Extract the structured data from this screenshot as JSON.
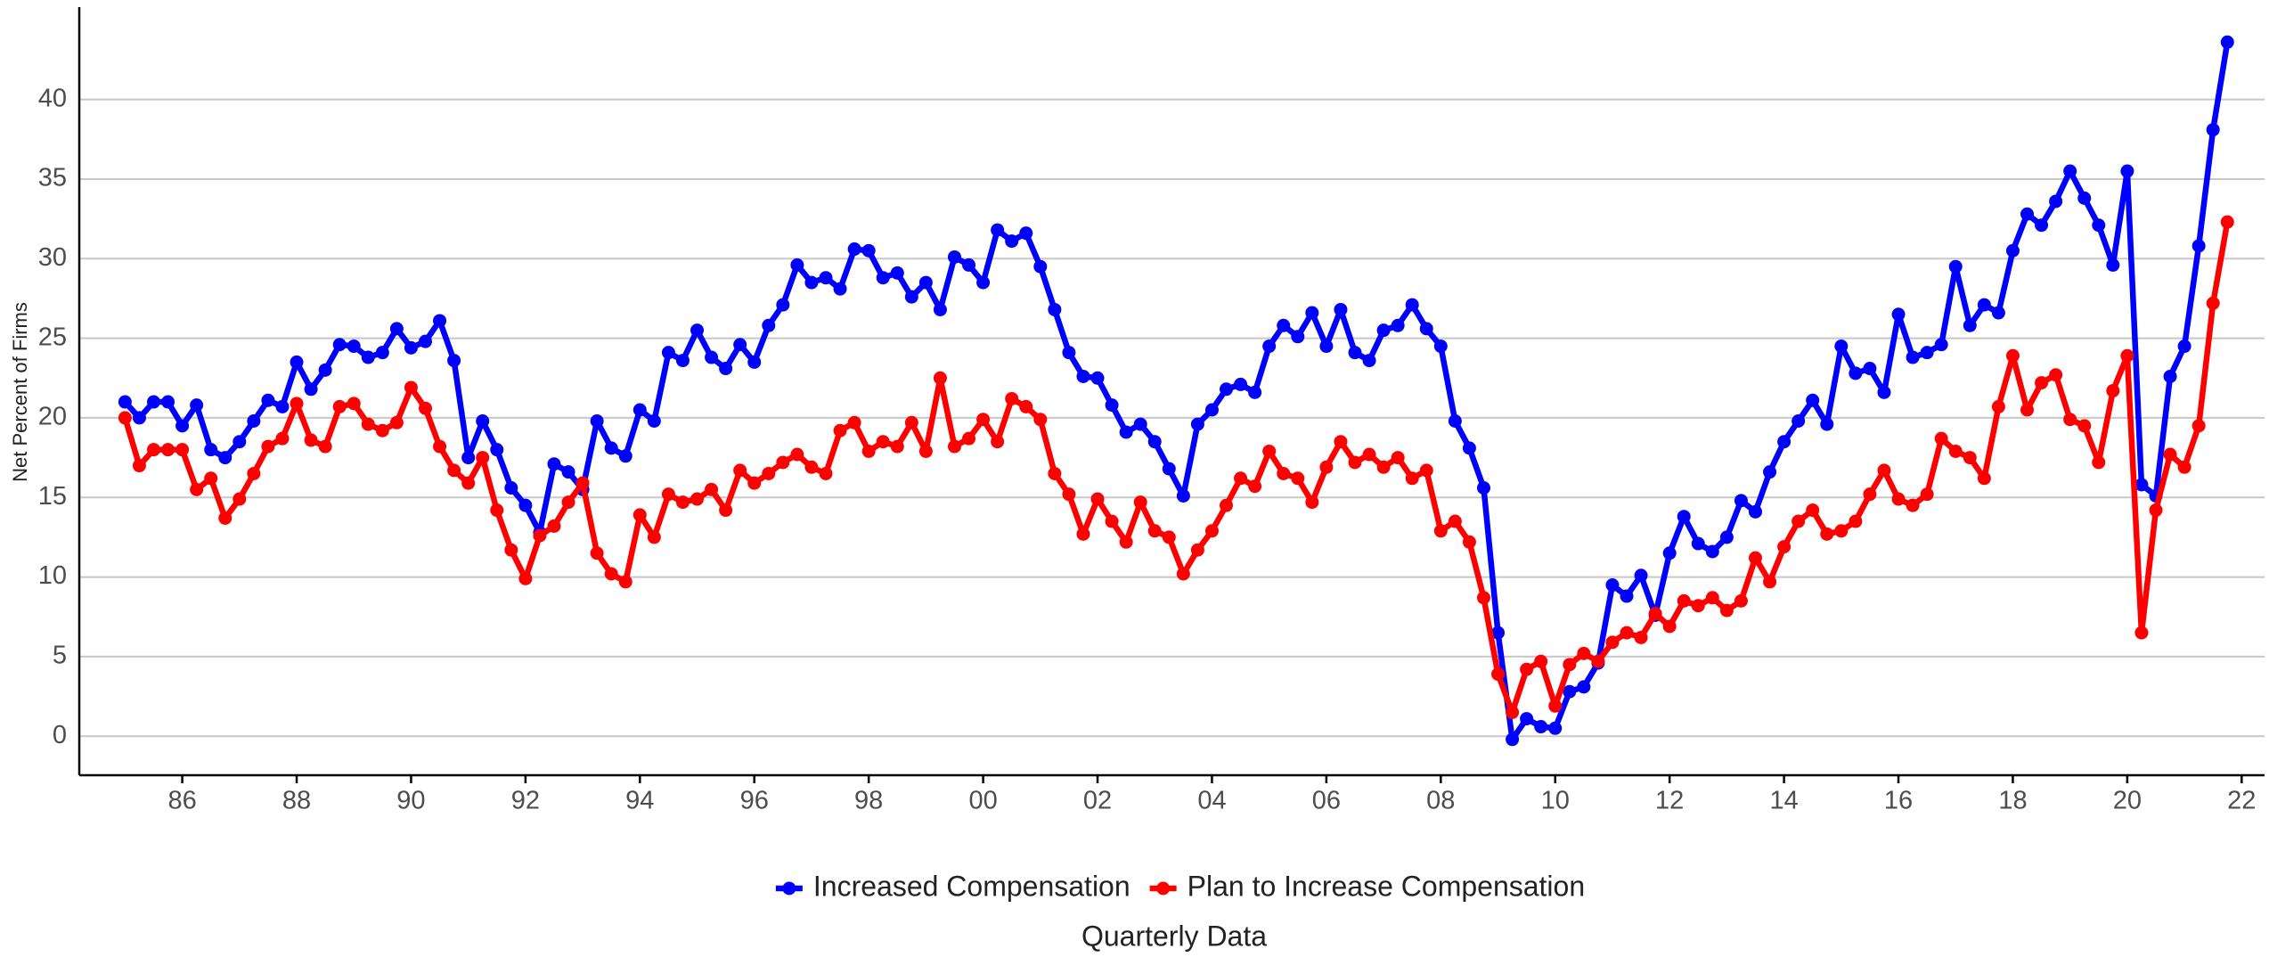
{
  "chart_data": {
    "type": "line",
    "y_label": "Net Percent of Firms",
    "x_label": "Quarterly Data",
    "x": [
      1985,
      1985.25,
      1985.5,
      1985.75,
      1986,
      1986.25,
      1986.5,
      1986.75,
      1987,
      1987.25,
      1987.5,
      1987.75,
      1988,
      1988.25,
      1988.5,
      1988.75,
      1989,
      1989.25,
      1989.5,
      1989.75,
      1990,
      1990.25,
      1990.5,
      1990.75,
      1991,
      1991.25,
      1991.5,
      1991.75,
      1992,
      1992.25,
      1992.5,
      1992.75,
      1993,
      1993.25,
      1993.5,
      1993.75,
      1994,
      1994.25,
      1994.5,
      1994.75,
      1995,
      1995.25,
      1995.5,
      1995.75,
      1996,
      1996.25,
      1996.5,
      1996.75,
      1997,
      1997.25,
      1997.5,
      1997.75,
      1998,
      1998.25,
      1998.5,
      1998.75,
      1999,
      1999.25,
      1999.5,
      1999.75,
      2000,
      2000.25,
      2000.5,
      2000.75,
      2001,
      2001.25,
      2001.5,
      2001.75,
      2002,
      2002.25,
      2002.5,
      2002.75,
      2003,
      2003.25,
      2003.5,
      2003.75,
      2004,
      2004.25,
      2004.5,
      2004.75,
      2005,
      2005.25,
      2005.5,
      2005.75,
      2006,
      2006.25,
      2006.5,
      2006.75,
      2007,
      2007.25,
      2007.5,
      2007.75,
      2008,
      2008.25,
      2008.5,
      2008.75,
      2009,
      2009.25,
      2009.5,
      2009.75,
      2010,
      2010.25,
      2010.5,
      2010.75,
      2011,
      2011.25,
      2011.5,
      2011.75,
      2012,
      2012.25,
      2012.5,
      2012.75,
      2013,
      2013.25,
      2013.5,
      2013.75,
      2014,
      2014.25,
      2014.5,
      2014.75,
      2015,
      2015.25,
      2015.5,
      2015.75,
      2016,
      2016.25,
      2016.5,
      2016.75,
      2017,
      2017.25,
      2017.5,
      2017.75,
      2018,
      2018.25,
      2018.5,
      2018.75,
      2019,
      2019.25,
      2019.5,
      2019.75,
      2020,
      2020.25,
      2020.5,
      2020.75,
      2021,
      2021.25,
      2021.5,
      2021.75
    ],
    "series": [
      {
        "name": "Increased Compensation",
        "color": "#0000ff",
        "values": [
          21,
          20,
          21,
          21,
          19.5,
          20.8,
          18,
          17.5,
          18.5,
          19.8,
          21.1,
          20.7,
          23.5,
          21.8,
          23,
          24.6,
          24.5,
          23.8,
          24.1,
          25.6,
          24.4,
          24.8,
          26.1,
          23.6,
          17.5,
          19.8,
          18,
          15.6,
          14.5,
          12.8,
          17.1,
          16.6,
          15.5,
          19.8,
          18.1,
          17.6,
          20.5,
          19.8,
          24.1,
          23.6,
          25.5,
          23.8,
          23.1,
          24.6,
          23.5,
          25.8,
          27.1,
          29.6,
          28.5,
          28.8,
          28.1,
          30.6,
          30.5,
          28.8,
          29.1,
          27.6,
          28.5,
          26.8,
          30.1,
          29.6,
          28.5,
          31.8,
          31.1,
          31.6,
          29.5,
          26.8,
          24.1,
          22.6,
          22.5,
          20.8,
          19.1,
          19.6,
          18.5,
          16.8,
          15.1,
          19.6,
          20.5,
          21.8,
          22.1,
          21.6,
          24.5,
          25.8,
          25.1,
          26.6,
          24.5,
          26.8,
          24.1,
          23.6,
          25.5,
          25.8,
          27.1,
          25.6,
          24.5,
          19.8,
          18.1,
          15.6,
          6.5,
          -0.2,
          1.1,
          0.6,
          0.5,
          2.8,
          3.1,
          4.6,
          9.5,
          8.8,
          10.1,
          7.6,
          11.5,
          13.8,
          12.1,
          11.6,
          12.5,
          14.8,
          14.1,
          16.6,
          18.5,
          19.8,
          21.1,
          19.6,
          24.5,
          22.8,
          23.1,
          21.6,
          26.5,
          23.8,
          24.1,
          24.6,
          29.5,
          25.8,
          27.1,
          26.6,
          30.5,
          32.8,
          32.1,
          33.6,
          35.5,
          33.8,
          32.1,
          29.6,
          35.5,
          15.8,
          15.1,
          22.6,
          24.5,
          30.8,
          38.1,
          43.6
        ]
      },
      {
        "name": "Plan to Increase Compensation",
        "color": "#ff0000",
        "values": [
          20,
          17,
          18,
          18,
          18,
          15.5,
          16.2,
          13.7,
          14.9,
          16.5,
          18.2,
          18.7,
          20.9,
          18.6,
          18.2,
          20.7,
          20.9,
          19.6,
          19.2,
          19.7,
          21.9,
          20.6,
          18.2,
          16.7,
          15.9,
          17.5,
          14.2,
          11.7,
          9.9,
          12.6,
          13.2,
          14.7,
          15.9,
          11.5,
          10.2,
          9.7,
          13.9,
          12.5,
          15.2,
          14.7,
          14.9,
          15.5,
          14.2,
          16.7,
          15.9,
          16.5,
          17.2,
          17.7,
          16.9,
          16.5,
          19.2,
          19.7,
          17.9,
          18.5,
          18.2,
          19.7,
          17.9,
          22.5,
          18.2,
          18.7,
          19.9,
          18.5,
          21.2,
          20.7,
          19.9,
          16.5,
          15.2,
          12.7,
          14.9,
          13.5,
          12.2,
          14.7,
          12.9,
          12.5,
          10.2,
          11.7,
          12.9,
          14.5,
          16.2,
          15.7,
          17.9,
          16.5,
          16.2,
          14.7,
          16.9,
          18.5,
          17.2,
          17.7,
          16.9,
          17.5,
          16.2,
          16.7,
          12.9,
          13.5,
          12.2,
          8.7,
          3.9,
          1.5,
          4.2,
          4.7,
          1.9,
          4.5,
          5.2,
          4.7,
          5.9,
          6.5,
          6.2,
          7.7,
          6.9,
          8.5,
          8.2,
          8.7,
          7.9,
          8.5,
          11.2,
          9.7,
          11.9,
          13.5,
          14.2,
          12.7,
          12.9,
          13.5,
          15.2,
          16.7,
          14.9,
          14.5,
          15.2,
          18.7,
          17.9,
          17.5,
          16.2,
          20.7,
          23.9,
          20.5,
          22.2,
          22.7,
          19.9,
          19.5,
          17.2,
          21.7,
          23.9,
          6.5,
          14.2,
          17.7,
          16.9,
          19.5,
          27.2,
          32.3
        ]
      }
    ],
    "xlim": [
      1984.2,
      2022.4
    ],
    "xticks": [
      {
        "value": 1986,
        "label": "86"
      },
      {
        "value": 1988,
        "label": "88"
      },
      {
        "value": 1990,
        "label": "90"
      },
      {
        "value": 1992,
        "label": "92"
      },
      {
        "value": 1994,
        "label": "94"
      },
      {
        "value": 1996,
        "label": "96"
      },
      {
        "value": 1998,
        "label": "98"
      },
      {
        "value": 2000,
        "label": "00"
      },
      {
        "value": 2002,
        "label": "02"
      },
      {
        "value": 2004,
        "label": "04"
      },
      {
        "value": 2006,
        "label": "06"
      },
      {
        "value": 2008,
        "label": "08"
      },
      {
        "value": 2010,
        "label": "10"
      },
      {
        "value": 2012,
        "label": "12"
      },
      {
        "value": 2014,
        "label": "14"
      },
      {
        "value": 2016,
        "label": "16"
      },
      {
        "value": 2018,
        "label": "18"
      },
      {
        "value": 2020,
        "label": "20"
      },
      {
        "value": 2022,
        "label": "22"
      }
    ],
    "ylim": [
      -2.45,
      45.8
    ],
    "yticks": [
      0,
      5,
      10,
      15,
      20,
      25,
      30,
      35,
      40
    ],
    "grid": true,
    "legend": "bottom"
  }
}
